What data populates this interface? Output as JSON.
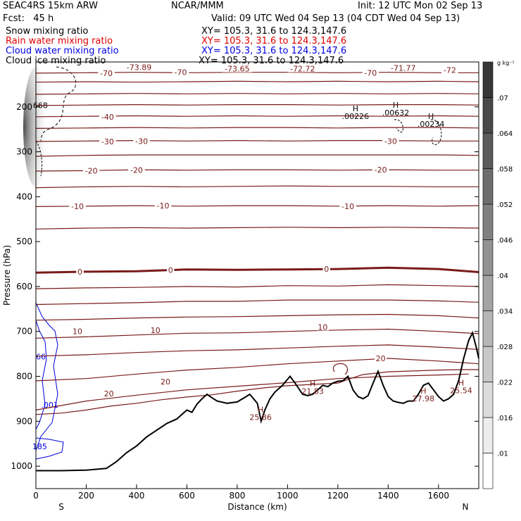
{
  "header": {
    "model": "SEAC4RS 15km ARW",
    "org": "NCAR/MMM",
    "init": "Init: 12 UTC Mon 02 Sep 13",
    "fcst": "Fcst:   45 h",
    "valid": "Valid: 09 UTC Wed 04 Sep 13 (04 CDT Wed 04 Sep 13)",
    "fields": [
      {
        "name": "Snow mixing ratio",
        "xy": "XY= 105.3, 31.6 to 124.3,147.6",
        "color": "#000000"
      },
      {
        "name": "Rain water mixing ratio",
        "xy": "XY= 105.3, 31.6 to 124.3,147.6",
        "color": "#e00000"
      },
      {
        "name": "Cloud water mixing ratio",
        "xy": "XY= 105.3, 31.6 to 124.3,147.6",
        "color": "#0000e0"
      },
      {
        "name": "Cloud ice mixing ratio",
        "xy": "XY= 105.3, 31.6 to 124.3,147.6",
        "color": "#000000"
      }
    ]
  },
  "chart_data": {
    "type": "line",
    "xlabel": "Distance (km)",
    "ylabel": "Pressure (hPa)",
    "xlim": [
      0,
      1760
    ],
    "ylim": [
      1050,
      100
    ],
    "x_ticks": [
      0,
      200,
      400,
      600,
      800,
      1000,
      1200,
      1400,
      1600
    ],
    "y_ticks": [
      200,
      300,
      400,
      500,
      600,
      700,
      800,
      900,
      1000
    ],
    "direction_labels": {
      "left": "S",
      "right": "N"
    },
    "colorbar": {
      "unit": "g kg⁻¹",
      "ticks": [
        ".01",
        ".016",
        ".022",
        ".028",
        ".034",
        ".04",
        ".046",
        ".052",
        ".058",
        ".064",
        ".07"
      ]
    },
    "temperature_contours": [
      {
        "value": -70,
        "x": [
          0,
          200,
          400,
          600,
          800,
          1000,
          1200,
          1400,
          1600,
          1760
        ],
        "p": [
          125,
          124,
          123,
          124,
          123,
          123,
          124,
          123,
          124,
          124
        ]
      },
      {
        "value": -60,
        "x": [
          0,
          200,
          400,
          600,
          800,
          1000,
          1200,
          1400,
          1600,
          1760
        ],
        "p": [
          145,
          144,
          145,
          144,
          143,
          144,
          143,
          144,
          143,
          144
        ]
      },
      {
        "value": -50,
        "x": [
          0,
          200,
          400,
          600,
          800,
          1000,
          1200,
          1400,
          1600,
          1760
        ],
        "p": [
          172,
          171,
          170,
          171,
          170,
          171,
          170,
          171,
          170,
          171
        ]
      },
      {
        "value": -45,
        "x": [
          0,
          200,
          400,
          600,
          800,
          1000,
          1200,
          1400,
          1600,
          1760
        ],
        "p": [
          197,
          196,
          195,
          196,
          195,
          195,
          196,
          195,
          195,
          196
        ]
      },
      {
        "value": -40,
        "x": [
          0,
          200,
          400,
          600,
          800,
          1000,
          1200,
          1400,
          1600,
          1760
        ],
        "p": [
          222,
          221,
          220,
          221,
          220,
          221,
          220,
          221,
          220,
          221
        ]
      },
      {
        "value": -35,
        "x": [
          0,
          200,
          400,
          600,
          800,
          1000,
          1200,
          1400,
          1600,
          1760
        ],
        "p": [
          248,
          247,
          246,
          247,
          246,
          246,
          247,
          246,
          246,
          247
        ]
      },
      {
        "value": -30,
        "x": [
          0,
          200,
          400,
          600,
          800,
          1000,
          1200,
          1400,
          1600,
          1760
        ],
        "p": [
          277,
          276,
          275,
          276,
          275,
          276,
          275,
          275,
          276,
          276
        ]
      },
      {
        "value": -25,
        "x": [
          0,
          200,
          400,
          600,
          800,
          1000,
          1200,
          1400,
          1600,
          1760
        ],
        "p": [
          310,
          308,
          307,
          307,
          307,
          307,
          307,
          307,
          307,
          308
        ]
      },
      {
        "value": -20,
        "x": [
          0,
          200,
          400,
          600,
          800,
          1000,
          1200,
          1400,
          1600,
          1760
        ],
        "p": [
          343,
          342,
          340,
          341,
          340,
          340,
          341,
          340,
          341,
          341
        ]
      },
      {
        "value": -15,
        "x": [
          0,
          200,
          400,
          600,
          800,
          1000,
          1200,
          1400,
          1600,
          1760
        ],
        "p": [
          380,
          378,
          377,
          378,
          377,
          376,
          377,
          377,
          378,
          378
        ]
      },
      {
        "value": -10,
        "x": [
          0,
          200,
          400,
          600,
          800,
          1000,
          1200,
          1400,
          1600,
          1760
        ],
        "p": [
          422,
          421,
          420,
          421,
          420,
          420,
          421,
          420,
          421,
          420
        ]
      },
      {
        "value": -5,
        "x": [
          0,
          200,
          400,
          600,
          800,
          1000,
          1200,
          1400,
          1600,
          1760
        ],
        "p": [
          472,
          470,
          469,
          470,
          469,
          468,
          469,
          468,
          469,
          470
        ]
      },
      {
        "value": 0,
        "x": [
          0,
          200,
          400,
          600,
          800,
          1000,
          1200,
          1400,
          1600,
          1760
        ],
        "p": [
          569,
          567,
          566,
          562,
          563,
          562,
          561,
          558,
          561,
          568
        ]
      },
      {
        "value": 5,
        "x": [
          0,
          200,
          400,
          600,
          800,
          1000,
          1200,
          1400,
          1600,
          1760
        ],
        "p": [
          605,
          603,
          602,
          600,
          601,
          598,
          599,
          596,
          598,
          600
        ]
      },
      {
        "value": 10,
        "x": [
          0,
          200,
          400,
          600,
          800,
          1000,
          1200,
          1400,
          1600,
          1760
        ],
        "p": [
          640,
          638,
          636,
          633,
          633,
          630,
          630,
          630,
          632,
          635
        ]
      },
      {
        "value": 15,
        "x": [
          0,
          200,
          400,
          600,
          800,
          1000,
          1200,
          1400,
          1600,
          1760
        ],
        "p": [
          675,
          673,
          670,
          668,
          667,
          665,
          663,
          662,
          665,
          670
        ]
      },
      {
        "value": 20,
        "x": [
          0,
          200,
          400,
          600,
          800,
          1000,
          1200,
          1400,
          1600,
          1760
        ],
        "p": [
          715,
          712,
          708,
          704,
          703,
          700,
          697,
          695,
          700,
          705
        ]
      },
      {
        "value": 25,
        "x": [
          0,
          200,
          400,
          600,
          800,
          1000,
          1200,
          1400,
          1600,
          1760
        ],
        "p": [
          755,
          752,
          747,
          743,
          741,
          737,
          733,
          730,
          735,
          740
        ]
      },
      {
        "value": 30,
        "x": [
          0,
          200,
          400,
          600,
          800,
          1000,
          1200,
          1400,
          1600,
          1760
        ],
        "p": [
          810,
          805,
          795,
          786,
          780,
          772,
          766,
          760,
          766,
          772
        ]
      },
      {
        "value": 35,
        "x": [
          0,
          200,
          400,
          600,
          800,
          1000,
          1200,
          1400,
          1600,
          1720
        ],
        "p": [
          875,
          855,
          842,
          830,
          822,
          814,
          805,
          800,
          797,
          795
        ]
      },
      {
        "value": 40,
        "x": [
          0,
          100,
          200,
          300,
          400,
          500,
          600,
          700,
          800,
          900,
          1000,
          1100,
          1200,
          1250,
          1300,
          1400,
          1500,
          1600,
          1700,
          1760
        ],
        "p": [
          885,
          882,
          875,
          866,
          860,
          852,
          846,
          841,
          833,
          826,
          821,
          818,
          815,
          805,
          796,
          790,
          788,
          786,
          785,
          785
        ]
      }
    ],
    "contour_labels": [
      {
        "text": "-70",
        "x": 280,
        "p": 125
      },
      {
        "text": "-70",
        "x": 575,
        "p": 123
      },
      {
        "text": "-70",
        "x": 1330,
        "p": 124
      },
      {
        "text": "-72",
        "x": 1645,
        "p": 118
      },
      {
        "text": "-40",
        "x": 285,
        "p": 222
      },
      {
        "text": "-30",
        "x": 285,
        "p": 277
      },
      {
        "text": "-30",
        "x": 420,
        "p": 276
      },
      {
        "text": "-30",
        "x": 1410,
        "p": 276
      },
      {
        "text": "-20",
        "x": 220,
        "p": 342
      },
      {
        "text": "-20",
        "x": 400,
        "p": 341
      },
      {
        "text": "-20",
        "x": 1370,
        "p": 340
      },
      {
        "text": "-10",
        "x": 165,
        "p": 421
      },
      {
        "text": "-10",
        "x": 505,
        "p": 420
      },
      {
        "text": "-10",
        "x": 1240,
        "p": 421
      },
      {
        "text": "0",
        "x": 175,
        "p": 567
      },
      {
        "text": "0",
        "x": 535,
        "p": 563
      },
      {
        "text": "0",
        "x": 1155,
        "p": 561
      },
      {
        "text": "10",
        "x": 165,
        "p": 700
      },
      {
        "text": "10",
        "x": 475,
        "p": 697
      },
      {
        "text": "10",
        "x": 1140,
        "p": 690
      },
      {
        "text": "20",
        "x": 290,
        "p": 838
      },
      {
        "text": "20",
        "x": 515,
        "p": 812
      },
      {
        "text": "20",
        "x": 1370,
        "p": 760
      },
      {
        "text": "-73.89",
        "x": 410,
        "p": 112
      },
      {
        "text": "-73.65",
        "x": 800,
        "p": 115
      },
      {
        "text": "-72.72",
        "x": 1060,
        "p": 115
      },
      {
        "text": "-71.77",
        "x": 1460,
        "p": 113
      }
    ],
    "terrain": {
      "x": [
        0,
        100,
        200,
        280,
        320,
        360,
        400,
        440,
        480,
        520,
        560,
        600,
        620,
        640,
        660,
        680,
        700,
        720,
        760,
        800,
        830,
        850,
        880,
        895,
        910,
        930,
        950,
        980,
        1010,
        1030,
        1060,
        1080,
        1100,
        1120,
        1140,
        1160,
        1180,
        1200,
        1220,
        1240,
        1260,
        1280,
        1300,
        1320,
        1340,
        1360,
        1380,
        1400,
        1420,
        1440,
        1460,
        1480,
        1500,
        1520,
        1540,
        1560,
        1580,
        1600,
        1620,
        1640,
        1660,
        1680,
        1700,
        1720,
        1735,
        1750,
        1760
      ],
      "p": [
        1010,
        1010,
        1009,
        1005,
        990,
        970,
        955,
        935,
        920,
        905,
        895,
        875,
        880,
        862,
        850,
        840,
        848,
        855,
        860,
        857,
        847,
        840,
        860,
        900,
        875,
        850,
        835,
        820,
        800,
        815,
        840,
        843,
        840,
        830,
        820,
        823,
        815,
        811,
        810,
        800,
        830,
        845,
        850,
        843,
        815,
        789,
        820,
        845,
        855,
        858,
        860,
        855,
        855,
        840,
        820,
        815,
        830,
        845,
        855,
        850,
        840,
        810,
        760,
        720,
        703,
        735,
        760
      ]
    },
    "terrain_labels": [
      {
        "text": "H",
        "x": 893,
        "p": 880,
        "value": "25.86"
      },
      {
        "text": "H",
        "x": 1100,
        "p": 822,
        "value": "21.83"
      },
      {
        "text": "H",
        "x": 1540,
        "p": 838,
        "value": "27.98"
      },
      {
        "text": "H",
        "x": 1690,
        "p": 820,
        "value": "25.54"
      }
    ],
    "ice_highs": [
      {
        "text": "H",
        "x": 1270,
        "p": 210,
        "value": ".00226"
      },
      {
        "text": "H",
        "x": 1430,
        "p": 202,
        "value": ".00632"
      },
      {
        "text": "H",
        "x": 1570,
        "p": 227,
        "value": ".00234"
      }
    ],
    "cloud_water_labels": [
      {
        "text": "66",
        "x": 20,
        "p": 762
      },
      {
        "text": ".001",
        "x": 55,
        "p": 870
      },
      {
        "text": "185",
        "x": 15,
        "p": 962
      }
    ],
    "ice_edge_label": {
      "text": "668",
      "x": 18,
      "p": 203
    }
  }
}
